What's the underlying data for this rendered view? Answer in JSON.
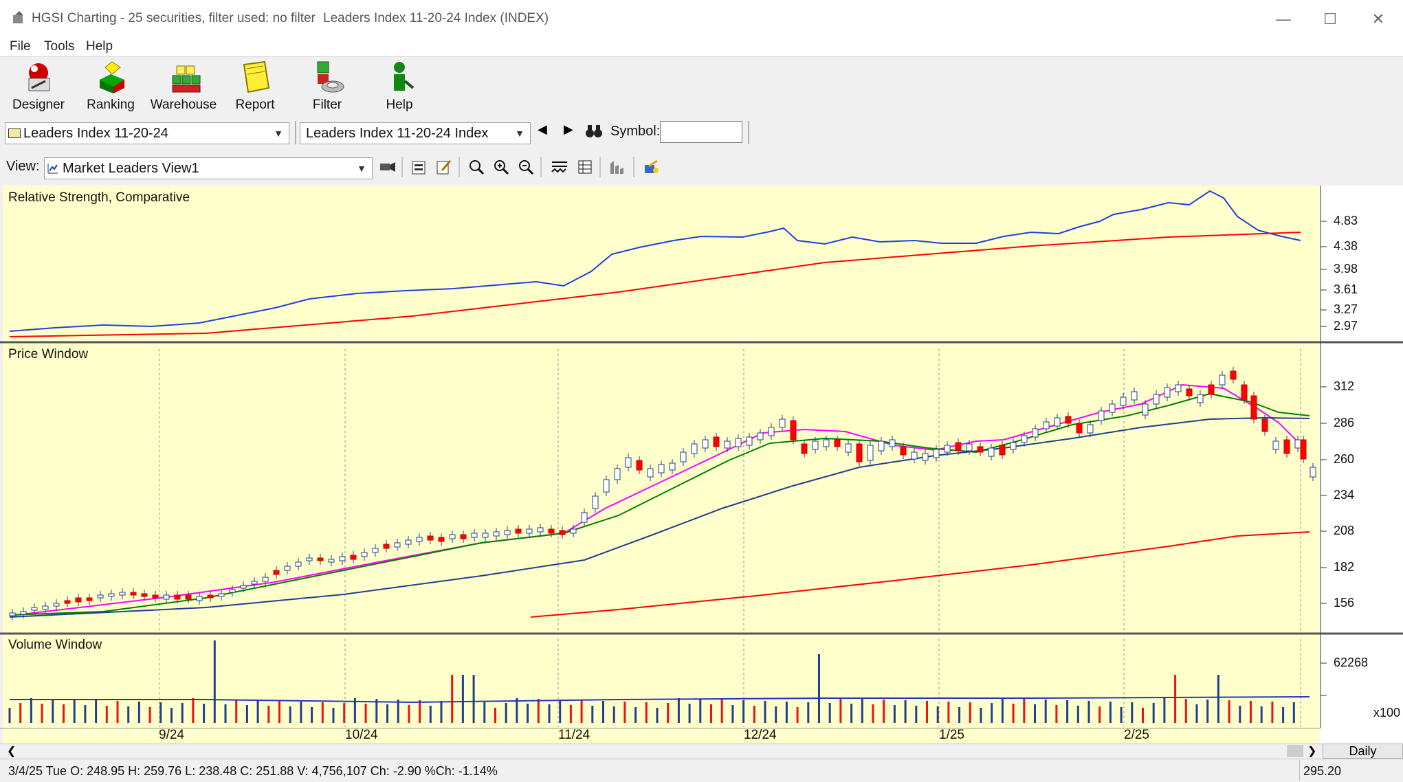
{
  "window": {
    "app_title": "HGSI Charting - 25 securities, filter used: no filter",
    "doc_title": "Leaders Index 11-20-24 Index (INDEX)"
  },
  "menu": [
    "File",
    "Tools",
    "Help"
  ],
  "toolbar": [
    {
      "label": "Designer",
      "icon": "designer-icon"
    },
    {
      "label": "Ranking",
      "icon": "ranking-icon"
    },
    {
      "label": "Warehouse",
      "icon": "warehouse-icon"
    },
    {
      "label": "Report",
      "icon": "report-icon"
    },
    {
      "label": "Filter",
      "icon": "filter-icon"
    },
    {
      "label": "Help",
      "icon": "help-icon"
    }
  ],
  "selectors": {
    "list": "Leaders Index 11-20-24",
    "security": "Leaders Index 11-20-24 Index",
    "symbol_label": "Symbol:",
    "symbol_value": ""
  },
  "view": {
    "label": "View:",
    "value": "Market Leaders View1"
  },
  "panels": {
    "rs_title": "Relative Strength, Comparative",
    "price_title": "Price Window",
    "volume_title": "Volume Window"
  },
  "rs_axis": [
    "4.83",
    "4.38",
    "3.98",
    "3.61",
    "3.27",
    "2.97"
  ],
  "price_axis": [
    "312",
    "286",
    "260",
    "234",
    "208",
    "182",
    "156"
  ],
  "volume_axis": [
    "62268"
  ],
  "volume_unit": "x100",
  "date_labels": [
    "9/24",
    "10/24",
    "11/24",
    "12/24",
    "1/25",
    "2/25"
  ],
  "period_button": "Daily",
  "status": {
    "text": "3/4/25 Tue O: 248.95 H: 259.76 L: 238.48 C: 251.88 V: 4,756,107 Ch: -2.90 %Ch: -1.14%",
    "right_value": "295.20"
  },
  "colors": {
    "chart_bg": "#ffffcc",
    "up_candle": "#ffffff",
    "down_candle": "#ff0000",
    "ma_fast": "#ff00ff",
    "ma_mid": "#008000",
    "ma_slow": "#1f3f8f",
    "ma_long": "#ff0000",
    "rs_line": "#1f3fdf"
  }
}
